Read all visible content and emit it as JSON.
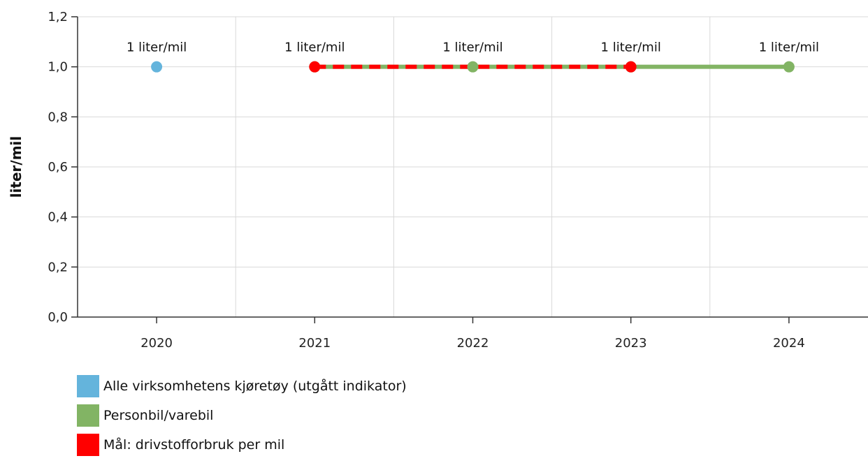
{
  "chart_data": {
    "type": "line",
    "categories": [
      "2020",
      "2021",
      "2022",
      "2023",
      "2024"
    ],
    "ylabel": "liter/mil",
    "ylim": [
      0,
      1.2
    ],
    "yticks": [
      "0,0",
      "0,2",
      "0,4",
      "0,6",
      "0,8",
      "1,0",
      "1,2"
    ],
    "grid": true,
    "legend_position": "bottom-left",
    "series": [
      {
        "name": "Alle virksomhetens kjøretøy (utgått indikator)",
        "color": "#64b4dc",
        "style": "solid",
        "values": [
          1,
          null,
          null,
          null,
          null
        ]
      },
      {
        "name": "Personbil/varebil",
        "color": "#82b464",
        "style": "solid",
        "values": [
          null,
          1,
          1,
          1,
          1
        ]
      },
      {
        "name": "Mål: drivstofforbruk per mil",
        "color": "#ff0000",
        "style": "dashed",
        "values": [
          null,
          1,
          null,
          1,
          null
        ]
      }
    ],
    "data_labels": [
      "1 liter/mil",
      "1 liter/mil",
      "1 liter/mil",
      "1 liter/mil",
      "1 liter/mil"
    ]
  }
}
